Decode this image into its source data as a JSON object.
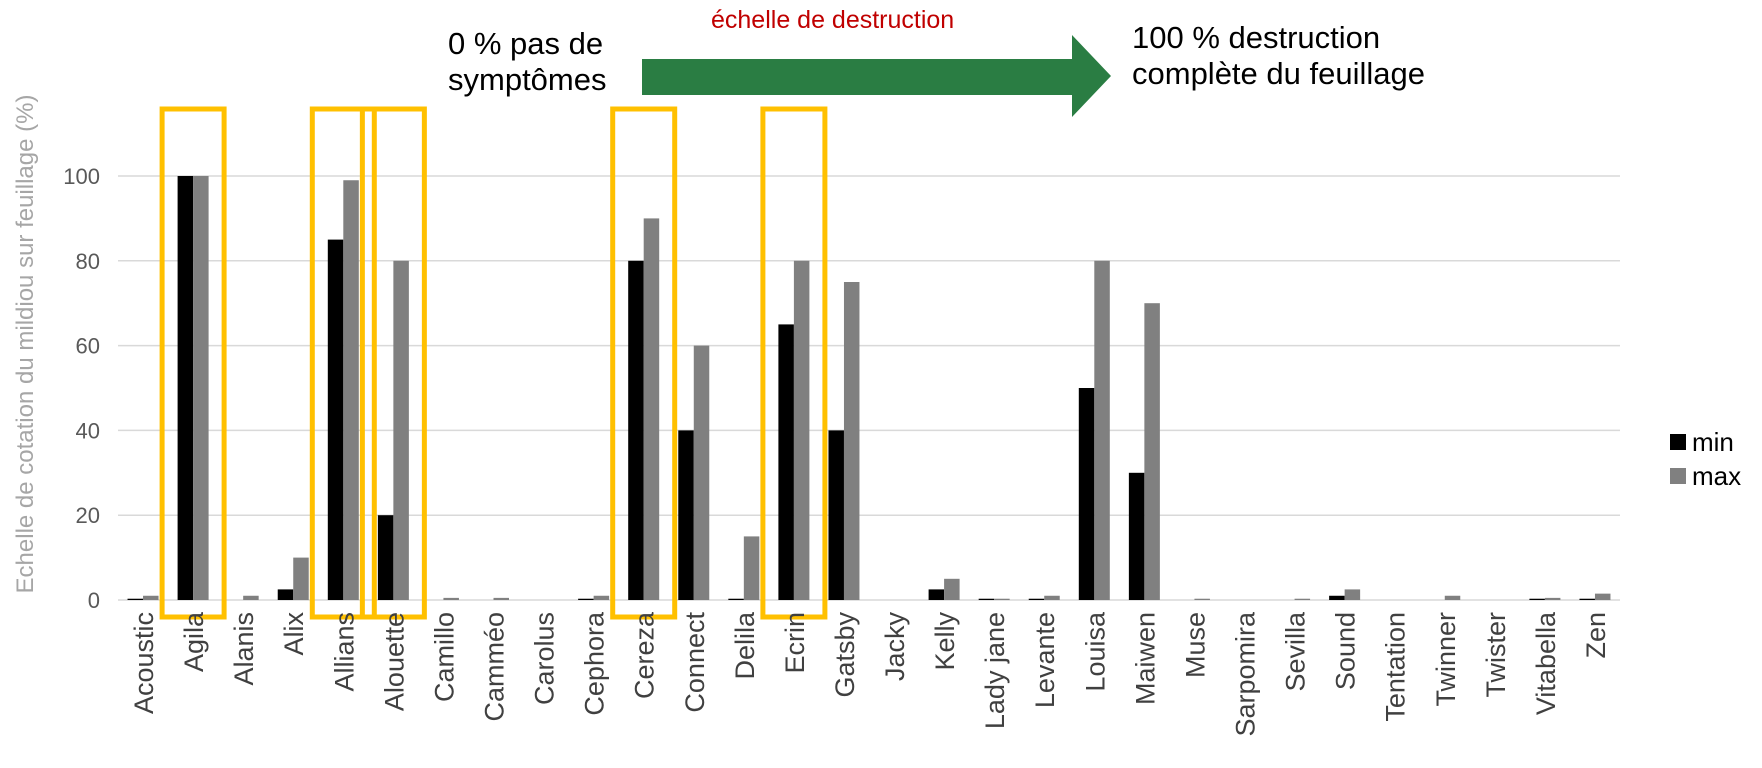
{
  "annotations": {
    "left_text": "0 % pas de\nsymptômes",
    "right_text": "100 % destruction\ncomplète du feuillage",
    "scale_label": "échelle de destruction"
  },
  "colors": {
    "min": "#000000",
    "max": "#808080",
    "highlight": "#ffc000",
    "arrow": "#2a7d43",
    "scale_label": "#c00000",
    "grid": "#d9d9d9"
  },
  "chart_data": {
    "type": "bar",
    "ylabel": "Echelle de cotation du mildiou sur feuillage (%)",
    "xlabel": "",
    "ylim": [
      0,
      100
    ],
    "yticks": [
      0,
      20,
      40,
      60,
      80,
      100
    ],
    "grid": true,
    "legend_position": "right",
    "categories": [
      "Acoustic",
      "Agila",
      "Alanis",
      "Alix",
      "Allians",
      "Alouette",
      "Camillo",
      "Camméo",
      "Carolus",
      "Cephora",
      "Cereza",
      "Connect",
      "Delila",
      "Ecrin",
      "Gatsby",
      "Jacky",
      "Kelly",
      "Lady jane",
      "Levante",
      "Louisa",
      "Maiwen",
      "Muse",
      "Sarpomira",
      "Sevilla",
      "Sound",
      "Tentation",
      "Twinner",
      "Twister",
      "Vitabella",
      "Zen"
    ],
    "series": [
      {
        "name": "min",
        "values": [
          0.3,
          100,
          0,
          2.5,
          85,
          20,
          0,
          0,
          0,
          0.3,
          80,
          40,
          0.3,
          65,
          40,
          0,
          2.5,
          0.3,
          0.3,
          50,
          30,
          0,
          0,
          0,
          1,
          0,
          0,
          0,
          0.3,
          0.3
        ]
      },
      {
        "name": "max",
        "values": [
          1,
          100,
          1,
          10,
          99,
          80,
          0.5,
          0.5,
          0,
          1,
          90,
          60,
          15,
          80,
          75,
          0,
          5,
          0.3,
          1,
          80,
          70,
          0.3,
          0,
          0.3,
          2.5,
          0,
          1,
          0,
          0.5,
          1.5
        ]
      }
    ],
    "highlighted_categories": [
      "Agila",
      "Allians",
      "Alouette",
      "Cereza",
      "Ecrin"
    ]
  }
}
